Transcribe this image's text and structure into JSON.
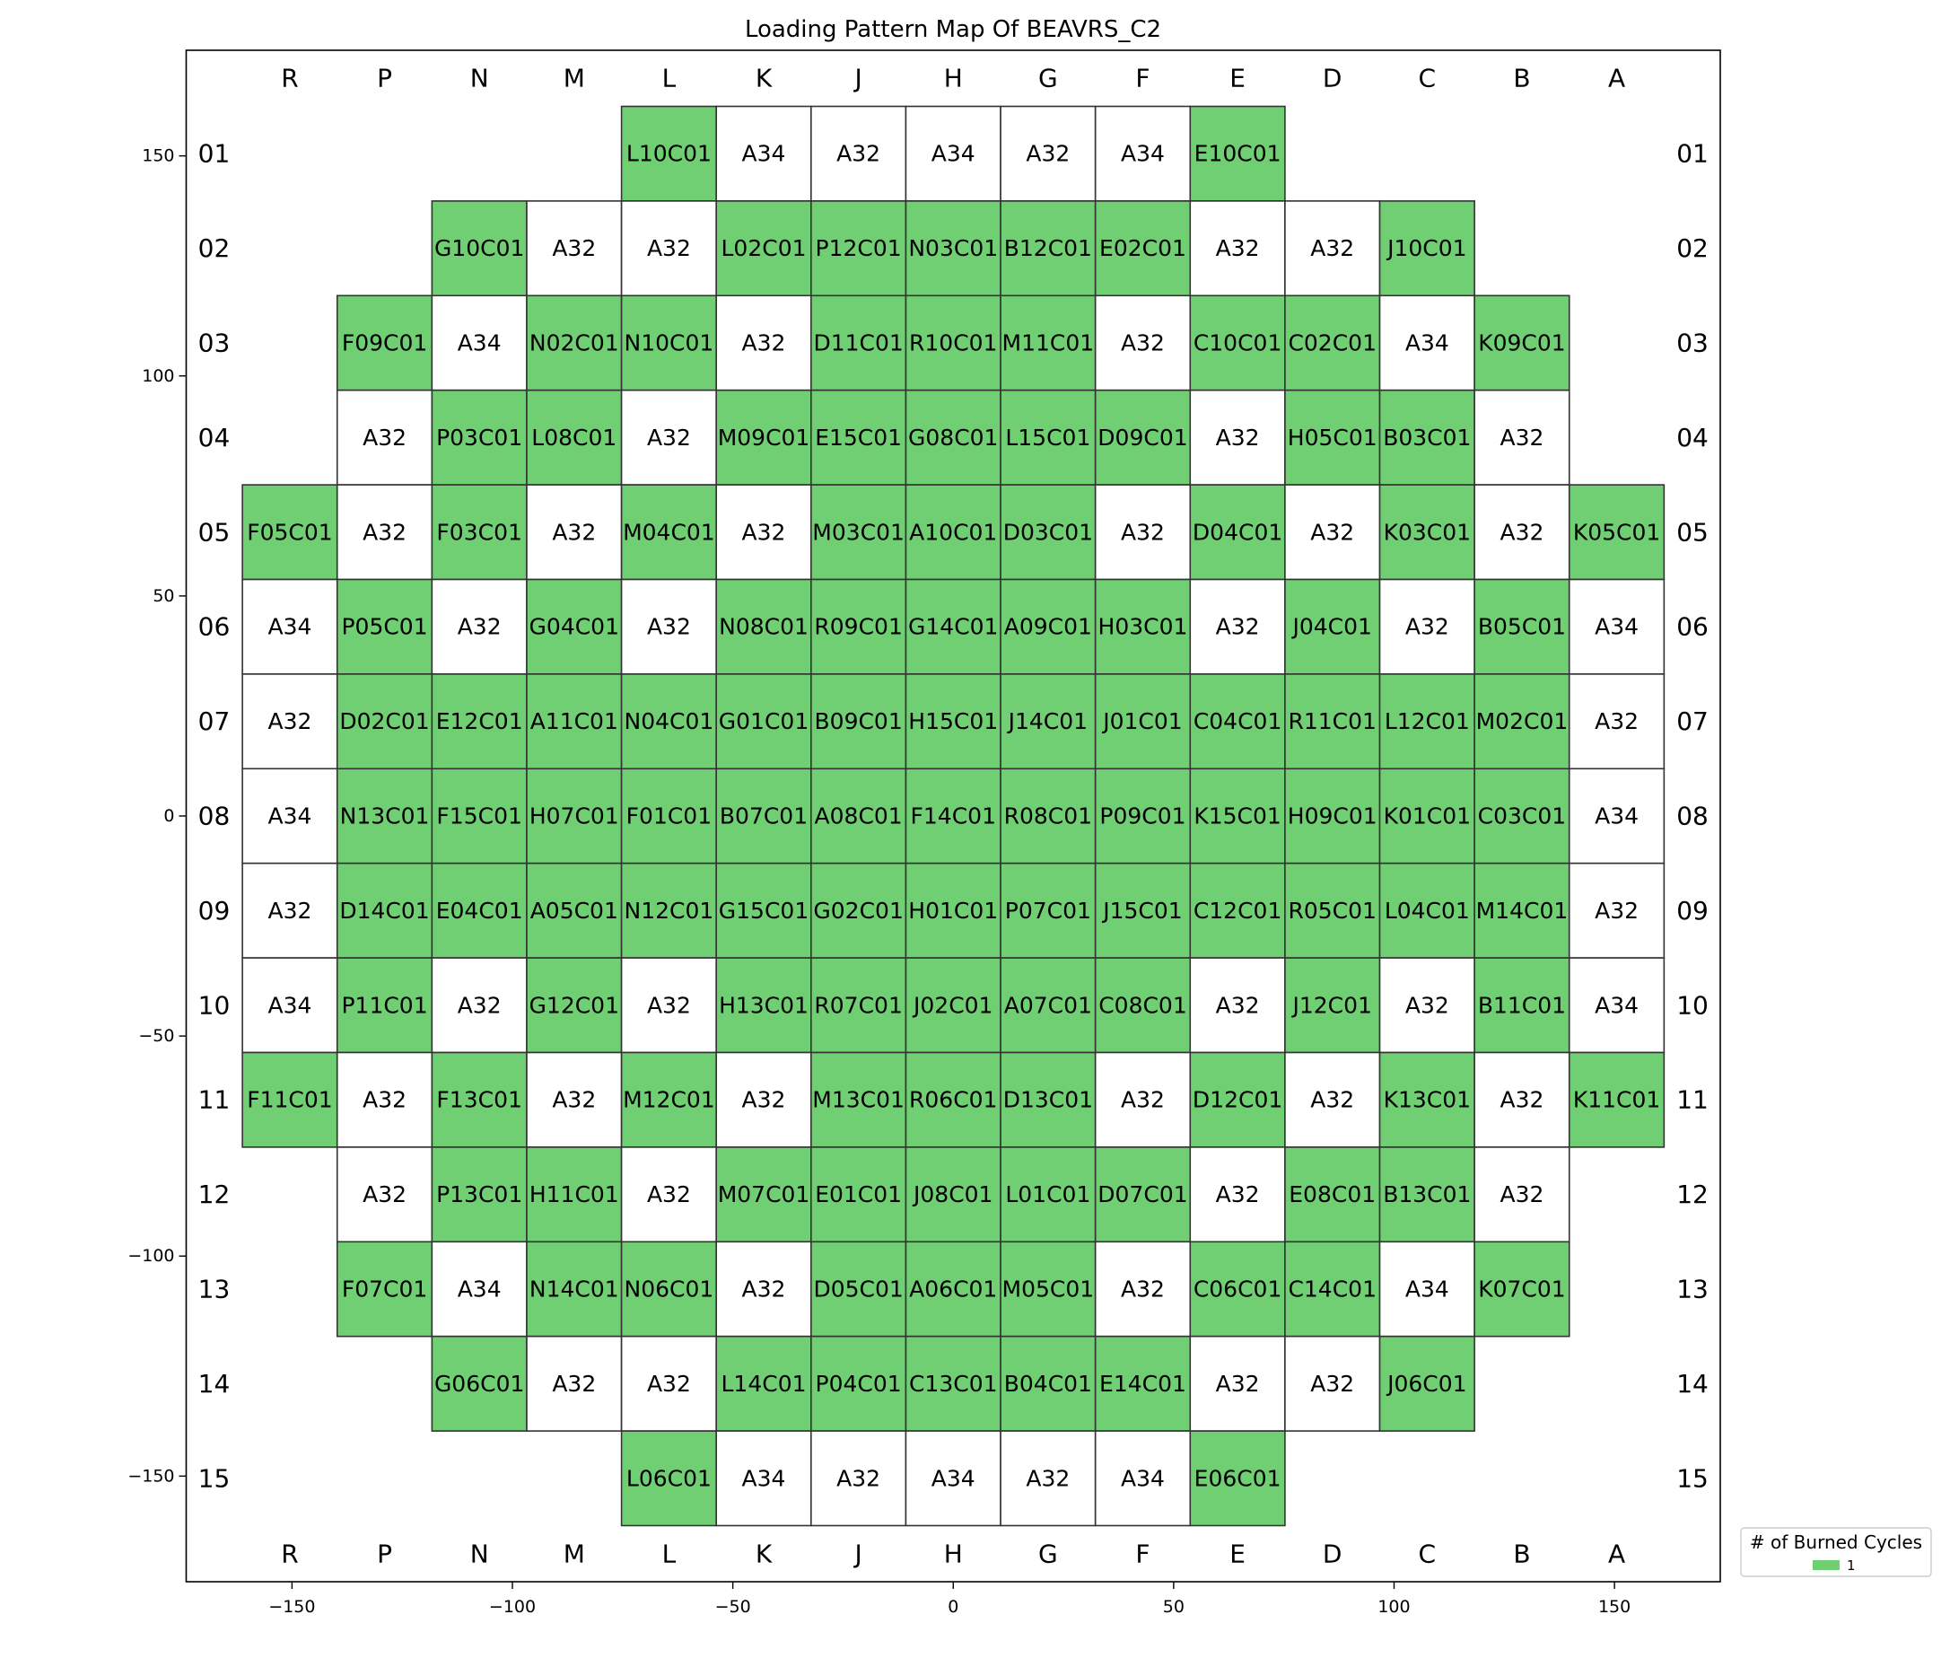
{
  "chart_data": {
    "type": "core-map",
    "title": "Loading Pattern Map Of BEAVRS_C2",
    "columns": [
      "R",
      "P",
      "N",
      "M",
      "L",
      "K",
      "J",
      "H",
      "G",
      "F",
      "E",
      "D",
      "C",
      "B",
      "A"
    ],
    "rows": [
      "01",
      "02",
      "03",
      "04",
      "05",
      "06",
      "07",
      "08",
      "09",
      "10",
      "11",
      "12",
      "13",
      "14",
      "15"
    ],
    "pitch": 21.5,
    "xlim": [
      -174,
      174
    ],
    "ylim": [
      -174,
      174
    ],
    "xticks": [
      {
        "value": -150,
        "label": "−150"
      },
      {
        "value": -100,
        "label": "−100"
      },
      {
        "value": -50,
        "label": "−50"
      },
      0,
      50,
      100,
      150
    ],
    "yticks": [
      150,
      100,
      50,
      0,
      {
        "value": -50,
        "label": "−50"
      },
      {
        "value": -100,
        "label": "−100"
      },
      {
        "value": -150,
        "label": "−150"
      }
    ],
    "palette": [
      "#ffffff",
      "#70cf73"
    ],
    "cells": [
      [
        null,
        null,
        null,
        null,
        "L10C01",
        "A34",
        "A32",
        "A34",
        "A32",
        "A34",
        "E10C01",
        null,
        null,
        null,
        null
      ],
      [
        null,
        null,
        "G10C01",
        "A32",
        "A32",
        "L02C01",
        "P12C01",
        "N03C01",
        "B12C01",
        "E02C01",
        "A32",
        "A32",
        "J10C01",
        null,
        null
      ],
      [
        null,
        "F09C01",
        "A34",
        "N02C01",
        "N10C01",
        "A32",
        "D11C01",
        "R10C01",
        "M11C01",
        "A32",
        "C10C01",
        "C02C01",
        "A34",
        "K09C01",
        null
      ],
      [
        null,
        "A32",
        "P03C01",
        "L08C01",
        "A32",
        "M09C01",
        "E15C01",
        "G08C01",
        "L15C01",
        "D09C01",
        "A32",
        "H05C01",
        "B03C01",
        "A32",
        null
      ],
      [
        "F05C01",
        "A32",
        "F03C01",
        "A32",
        "M04C01",
        "A32",
        "M03C01",
        "A10C01",
        "D03C01",
        "A32",
        "D04C01",
        "A32",
        "K03C01",
        "A32",
        "K05C01"
      ],
      [
        "A34",
        "P05C01",
        "A32",
        "G04C01",
        "A32",
        "N08C01",
        "R09C01",
        "G14C01",
        "A09C01",
        "H03C01",
        "A32",
        "J04C01",
        "A32",
        "B05C01",
        "A34"
      ],
      [
        "A32",
        "D02C01",
        "E12C01",
        "A11C01",
        "N04C01",
        "G01C01",
        "B09C01",
        "H15C01",
        "J14C01",
        "J01C01",
        "C04C01",
        "R11C01",
        "L12C01",
        "M02C01",
        "A32"
      ],
      [
        "A34",
        "N13C01",
        "F15C01",
        "H07C01",
        "F01C01",
        "B07C01",
        "A08C01",
        "F14C01",
        "R08C01",
        "P09C01",
        "K15C01",
        "H09C01",
        "K01C01",
        "C03C01",
        "A34"
      ],
      [
        "A32",
        "D14C01",
        "E04C01",
        "A05C01",
        "N12C01",
        "G15C01",
        "G02C01",
        "H01C01",
        "P07C01",
        "J15C01",
        "C12C01",
        "R05C01",
        "L04C01",
        "M14C01",
        "A32"
      ],
      [
        "A34",
        "P11C01",
        "A32",
        "G12C01",
        "A32",
        "H13C01",
        "R07C01",
        "J02C01",
        "A07C01",
        "C08C01",
        "A32",
        "J12C01",
        "A32",
        "B11C01",
        "A34"
      ],
      [
        "F11C01",
        "A32",
        "F13C01",
        "A32",
        "M12C01",
        "A32",
        "M13C01",
        "R06C01",
        "D13C01",
        "A32",
        "D12C01",
        "A32",
        "K13C01",
        "A32",
        "K11C01"
      ],
      [
        null,
        "A32",
        "P13C01",
        "H11C01",
        "A32",
        "M07C01",
        "E01C01",
        "J08C01",
        "L01C01",
        "D07C01",
        "A32",
        "E08C01",
        "B13C01",
        "A32",
        null
      ],
      [
        null,
        "F07C01",
        "A34",
        "N14C01",
        "N06C01",
        "A32",
        "D05C01",
        "A06C01",
        "M05C01",
        "A32",
        "C06C01",
        "C14C01",
        "A34",
        "K07C01",
        null
      ],
      [
        null,
        null,
        "G06C01",
        "A32",
        "A32",
        "L14C01",
        "P04C01",
        "C13C01",
        "B04C01",
        "E14C01",
        "A32",
        "A32",
        "J06C01",
        null,
        null
      ],
      [
        null,
        null,
        null,
        null,
        "L06C01",
        "A34",
        "A32",
        "A34",
        "A32",
        "A34",
        "E06C01",
        null,
        null,
        null,
        null
      ]
    ],
    "cycles": [
      [
        null,
        null,
        null,
        null,
        1,
        0,
        0,
        0,
        0,
        0,
        1,
        null,
        null,
        null,
        null
      ],
      [
        null,
        null,
        1,
        0,
        0,
        1,
        1,
        1,
        1,
        1,
        0,
        0,
        1,
        null,
        null
      ],
      [
        null,
        1,
        0,
        1,
        1,
        0,
        1,
        1,
        1,
        0,
        1,
        1,
        0,
        1,
        null
      ],
      [
        null,
        0,
        1,
        1,
        0,
        1,
        1,
        1,
        1,
        1,
        0,
        1,
        1,
        0,
        null
      ],
      [
        1,
        0,
        1,
        0,
        1,
        0,
        1,
        1,
        1,
        0,
        1,
        0,
        1,
        0,
        1
      ],
      [
        0,
        1,
        0,
        1,
        0,
        1,
        1,
        1,
        1,
        1,
        0,
        1,
        0,
        1,
        0
      ],
      [
        0,
        1,
        1,
        1,
        1,
        1,
        1,
        1,
        1,
        1,
        1,
        1,
        1,
        1,
        0
      ],
      [
        0,
        1,
        1,
        1,
        1,
        1,
        1,
        1,
        1,
        1,
        1,
        1,
        1,
        1,
        0
      ],
      [
        0,
        1,
        1,
        1,
        1,
        1,
        1,
        1,
        1,
        1,
        1,
        1,
        1,
        1,
        0
      ],
      [
        0,
        1,
        0,
        1,
        0,
        1,
        1,
        1,
        1,
        1,
        0,
        1,
        0,
        1,
        0
      ],
      [
        1,
        0,
        1,
        0,
        1,
        0,
        1,
        1,
        1,
        0,
        1,
        0,
        1,
        0,
        1
      ],
      [
        null,
        0,
        1,
        1,
        0,
        1,
        1,
        1,
        1,
        1,
        0,
        1,
        1,
        0,
        null
      ],
      [
        null,
        1,
        0,
        1,
        1,
        0,
        1,
        1,
        1,
        0,
        1,
        1,
        0,
        1,
        null
      ],
      [
        null,
        null,
        1,
        0,
        0,
        1,
        1,
        1,
        1,
        1,
        0,
        0,
        1,
        null,
        null
      ],
      [
        null,
        null,
        null,
        null,
        1,
        0,
        0,
        0,
        0,
        0,
        1,
        null,
        null,
        null,
        null
      ]
    ],
    "legend": {
      "title": "# of Burned Cycles",
      "entries": [
        1
      ]
    }
  }
}
